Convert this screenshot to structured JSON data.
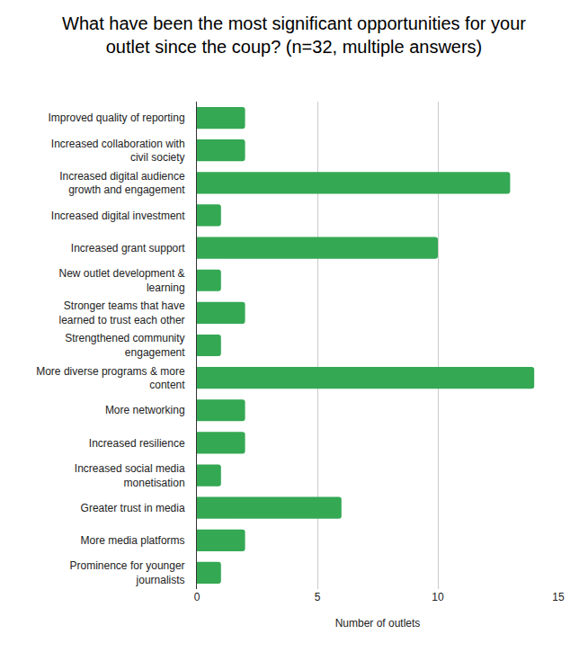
{
  "chart_data": {
    "type": "bar",
    "orientation": "horizontal",
    "title": "What have been the most significant opportunities for your outlet since the coup? (n=32, multiple answers)",
    "xlabel": "Number of outlets",
    "categories": [
      "Improved quality of reporting",
      "Increased collaboration with civil society",
      "Increased digital audience growth and engagement",
      "Increased digital investment",
      "Increased grant support",
      "New outlet development & learning",
      "Stronger teams that have learned to trust each other",
      "Strengthened community engagement",
      "More diverse programs & more content",
      "More networking",
      "Increased resilience",
      "Increased social media monetisation",
      "Greater trust in media",
      "More media platforms",
      "Prominence for younger journalists"
    ],
    "values": [
      2,
      2,
      13,
      1,
      10,
      1,
      2,
      1,
      14,
      2,
      2,
      1,
      6,
      2,
      1
    ],
    "color": "#34a853",
    "xlim": [
      0,
      15
    ],
    "xticks": [
      0,
      5,
      10,
      15
    ],
    "grid": true
  }
}
